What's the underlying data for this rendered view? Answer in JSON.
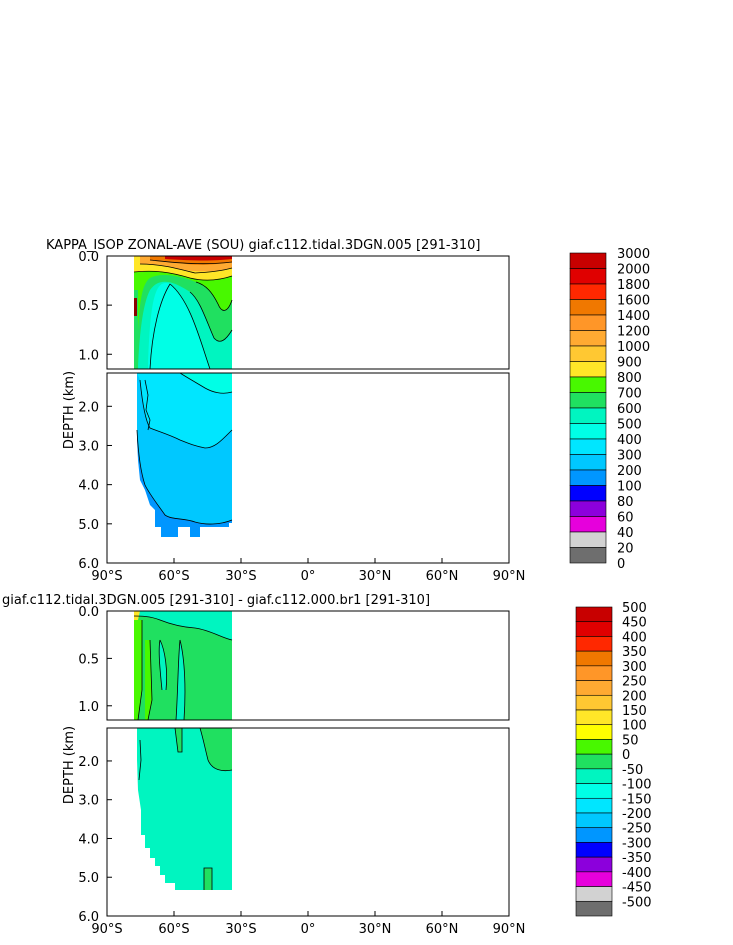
{
  "chart_data": [
    {
      "type": "heatmap",
      "title": "KAPPA_ISOP ZONAL-AVE (SOU) giaf.c112.tidal.3DGN.005 [291-310]",
      "xlabel": "",
      "ylabel": "DEPTH (km)",
      "x_ticks": [
        "90°S",
        "60°S",
        "30°S",
        "0°",
        "30°N",
        "60°N",
        "90°N"
      ],
      "xlim": [
        -90,
        90
      ],
      "y_ticks_upper": [
        "0.0",
        "0.5",
        "1.0"
      ],
      "y_ticks_lower": [
        "2.0",
        "3.0",
        "4.0",
        "5.0",
        "6.0"
      ],
      "ylim": [
        6.0,
        0.0
      ],
      "y_break_km": 1.15,
      "colorbar_levels": [
        "3000",
        "2000",
        "1800",
        "1600",
        "1400",
        "1200",
        "1000",
        "900",
        "800",
        "700",
        "600",
        "500",
        "400",
        "300",
        "200",
        "100",
        "80",
        "60",
        "40",
        "20",
        "0"
      ],
      "colorbar_colors": [
        "#c80000",
        "#e00000",
        "#ff2800",
        "#f07800",
        "#ff9628",
        "#ffaa32",
        "#ffc832",
        "#ffe628",
        "#48f800",
        "#20e060",
        "#00f5c0",
        "#00ffe6",
        "#00e6ff",
        "#00c8ff",
        "#0096ff",
        "#0000ff",
        "#8c00dc",
        "#e600dc",
        "#d2d2d2",
        "#6e6e6e"
      ],
      "data_extent_lat": [
        -78,
        -34
      ],
      "bottom_depth_km": 5.4
    },
    {
      "type": "heatmap",
      "title": "giaf.c112.tidal.3DGN.005 [291-310] - giaf.c112.000.br1 [291-310]",
      "xlabel": "",
      "ylabel": "DEPTH (km)",
      "x_ticks": [
        "90°S",
        "60°S",
        "30°S",
        "0°",
        "30°N",
        "60°N",
        "90°N"
      ],
      "xlim": [
        -90,
        90
      ],
      "y_ticks_upper": [
        "0.0",
        "0.5",
        "1.0"
      ],
      "y_ticks_lower": [
        "2.0",
        "3.0",
        "4.0",
        "5.0",
        "6.0"
      ],
      "ylim": [
        6.0,
        0.0
      ],
      "y_break_km": 1.15,
      "colorbar_levels": [
        "500",
        "450",
        "400",
        "350",
        "300",
        "250",
        "200",
        "150",
        "100",
        "50",
        "0",
        "-50",
        "-100",
        "-150",
        "-200",
        "-250",
        "-300",
        "-350",
        "-400",
        "-450",
        "-500"
      ],
      "colorbar_colors": [
        "#c80000",
        "#e00000",
        "#ff2800",
        "#f07800",
        "#ff9628",
        "#ffaa32",
        "#ffc832",
        "#ffe628",
        "#ffff00",
        "#48f800",
        "#20e060",
        "#00f5c0",
        "#00ffe6",
        "#00e6ff",
        "#00c8ff",
        "#0096ff",
        "#0000ff",
        "#8c00dc",
        "#e600dc",
        "#d2d2d2",
        "#6e6e6e"
      ],
      "data_extent_lat": [
        -78,
        -34
      ],
      "bottom_depth_km": 5.4
    }
  ]
}
